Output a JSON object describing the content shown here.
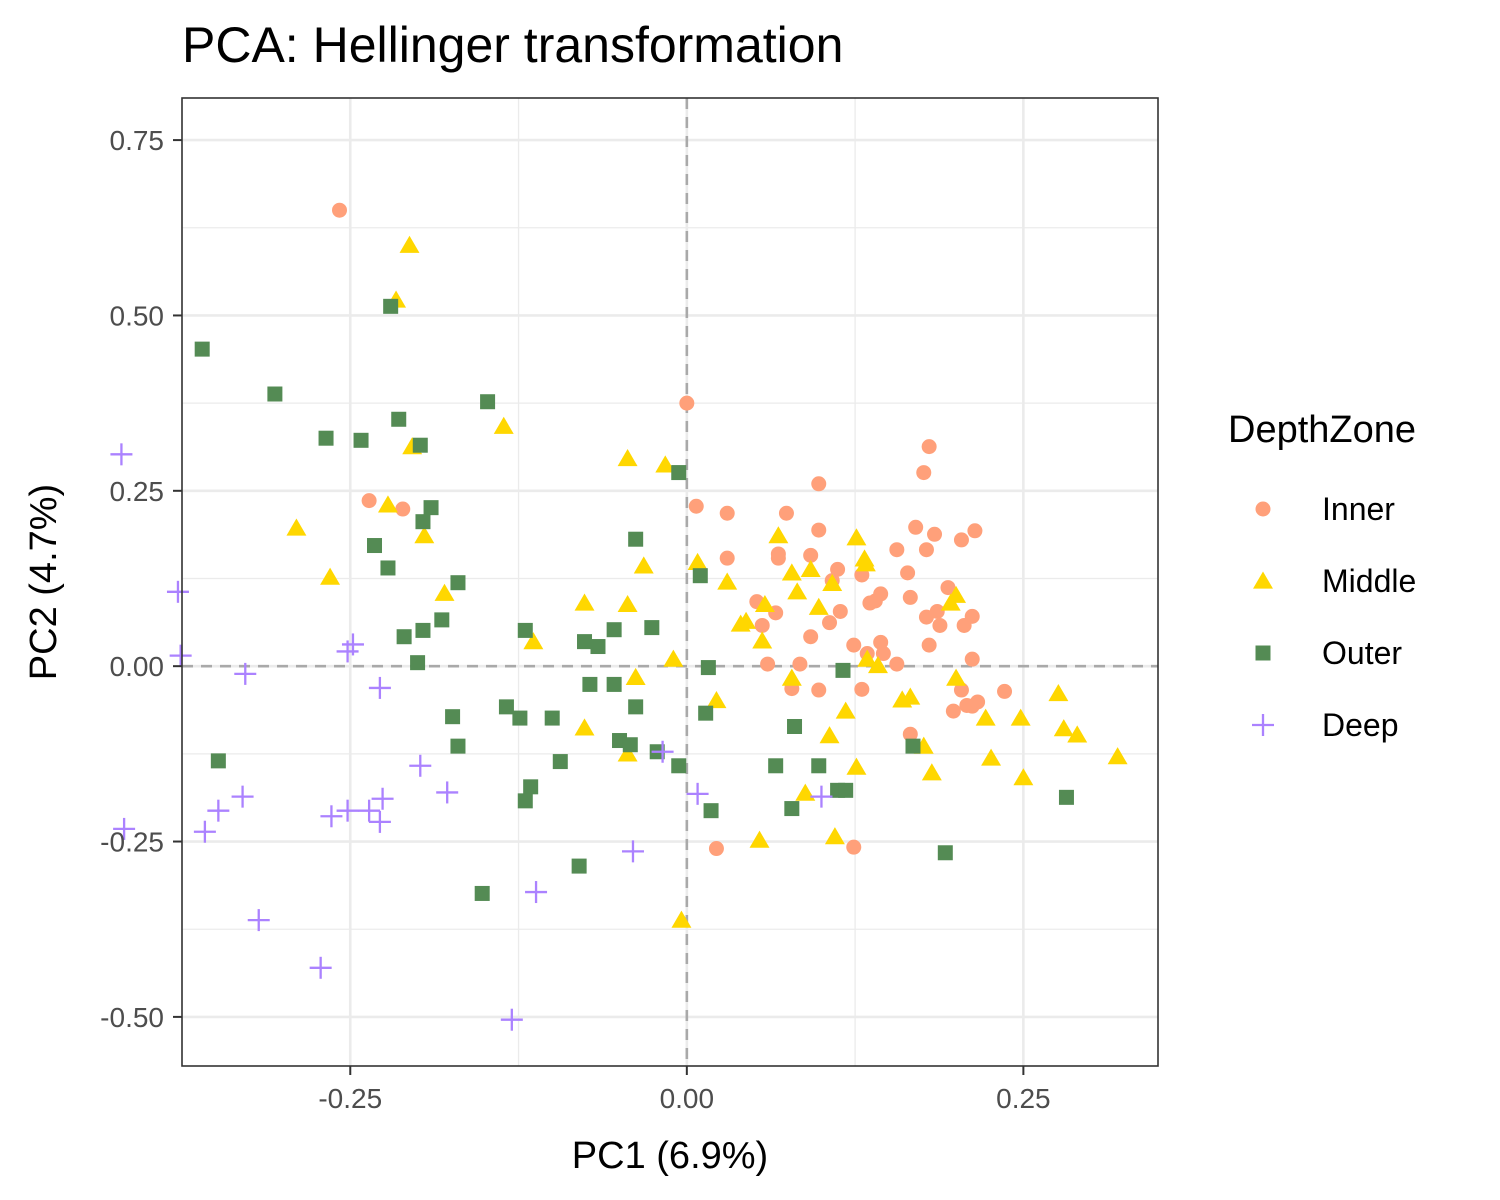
{
  "chart_data": {
    "type": "scatter",
    "title": "PCA: Hellinger transformation",
    "xlabel": "PC1 (6.9%)",
    "ylabel": "PC2 (4.7%)",
    "xlim": [
      -0.375,
      0.35
    ],
    "ylim": [
      -0.57,
      0.81
    ],
    "xticks": [
      -0.25,
      0.0,
      0.25
    ],
    "xtick_labels": [
      "-0.25",
      "0.00",
      "0.25"
    ],
    "yticks": [
      -0.5,
      -0.25,
      0.0,
      0.25,
      0.5,
      0.75
    ],
    "ytick_labels": [
      "-0.50",
      "-0.25",
      "0.00",
      "0.25",
      "0.50",
      "0.75"
    ],
    "grid": true,
    "reference_lines": {
      "x": 0,
      "y": 0,
      "style": "dashed"
    },
    "legend": {
      "title": "DepthZone",
      "position": "right"
    },
    "colors": {
      "Inner": "#FFA07A",
      "Middle": "#FFD700",
      "Outer": "#548B54",
      "Deep": "#AB82FF"
    },
    "series": [
      {
        "name": "Inner",
        "marker": "circle",
        "points": [
          [
            -0.258,
            0.65
          ],
          [
            -0.236,
            0.236
          ],
          [
            -0.211,
            0.224
          ],
          [
            0,
            0.375
          ],
          [
            0.007,
            0.228
          ],
          [
            0.03,
            0.218
          ],
          [
            0.03,
            0.154
          ],
          [
            0.052,
            0.092
          ],
          [
            0.056,
            0.058
          ],
          [
            0.06,
            0.003
          ],
          [
            0.066,
            0.076
          ],
          [
            0.074,
            0.218
          ],
          [
            0.068,
            0.16
          ],
          [
            0.068,
            0.154
          ],
          [
            0.078,
            -0.032
          ],
          [
            0.092,
            0.158
          ],
          [
            0.098,
            0.26
          ],
          [
            0.098,
            0.194
          ],
          [
            0.092,
            0.042
          ],
          [
            0.084,
            0.003
          ],
          [
            0.108,
            0.122
          ],
          [
            0.112,
            0.138
          ],
          [
            0.106,
            0.062
          ],
          [
            0.114,
            0.078
          ],
          [
            0.124,
            0.03
          ],
          [
            0.13,
            0.13
          ],
          [
            0.136,
            0.09
          ],
          [
            0.134,
            0.018
          ],
          [
            0.14,
            0.093
          ],
          [
            0.144,
            0.103
          ],
          [
            0.144,
            0.034
          ],
          [
            0.146,
            0.018
          ],
          [
            0.13,
            -0.033
          ],
          [
            0.098,
            -0.034
          ],
          [
            0.156,
            0.166
          ],
          [
            0.164,
            0.133
          ],
          [
            0.166,
            0.098
          ],
          [
            0.17,
            0.198
          ],
          [
            0.176,
            0.276
          ],
          [
            0.18,
            0.313
          ],
          [
            0.178,
            0.166
          ],
          [
            0.184,
            0.188
          ],
          [
            0.178,
            0.07
          ],
          [
            0.18,
            0.03
          ],
          [
            0.186,
            0.078
          ],
          [
            0.188,
            0.058
          ],
          [
            0.194,
            0.112
          ],
          [
            0.204,
            0.18
          ],
          [
            0.206,
            0.058
          ],
          [
            0.214,
            0.193
          ],
          [
            0.212,
            0.071
          ],
          [
            0.212,
            0.01
          ],
          [
            0.198,
            -0.064
          ],
          [
            0.204,
            -0.034
          ],
          [
            0.208,
            -0.056
          ],
          [
            0.212,
            -0.057
          ],
          [
            0.216,
            -0.051
          ],
          [
            0.236,
            -0.036
          ],
          [
            0.156,
            0.003
          ],
          [
            0.166,
            -0.097
          ],
          [
            0.022,
            -0.26
          ],
          [
            0.124,
            -0.258
          ]
        ]
      },
      {
        "name": "Middle",
        "marker": "triangle",
        "points": [
          [
            -0.206,
            0.6
          ],
          [
            -0.216,
            0.522
          ],
          [
            -0.136,
            0.342
          ],
          [
            -0.204,
            0.313
          ],
          [
            -0.222,
            0.23
          ],
          [
            -0.29,
            0.197
          ],
          [
            -0.265,
            0.127
          ],
          [
            -0.195,
            0.186
          ],
          [
            -0.18,
            0.104
          ],
          [
            -0.114,
            0.035
          ],
          [
            -0.044,
            0.296
          ],
          [
            -0.016,
            0.287
          ],
          [
            -0.032,
            0.143
          ],
          [
            -0.076,
            0.09
          ],
          [
            -0.044,
            0.088
          ],
          [
            -0.038,
            -0.016
          ],
          [
            -0.076,
            -0.088
          ],
          [
            -0.044,
            -0.125
          ],
          [
            -0.01,
            0.01
          ],
          [
            0.008,
            0.148
          ],
          [
            0.03,
            0.12
          ],
          [
            0.044,
            0.064
          ],
          [
            0.04,
            0.06
          ],
          [
            0.056,
            0.036
          ],
          [
            0.058,
            0.088
          ],
          [
            0.068,
            0.186
          ],
          [
            0.078,
            0.133
          ],
          [
            0.082,
            0.106
          ],
          [
            0.092,
            0.138
          ],
          [
            0.098,
            0.084
          ],
          [
            0.108,
            0.118
          ],
          [
            0.126,
            0.183
          ],
          [
            0.132,
            0.153
          ],
          [
            0.133,
            0.146
          ],
          [
            0.134,
            0.01
          ],
          [
            0.142,
            0.001
          ],
          [
            0.16,
            -0.048
          ],
          [
            0.166,
            -0.044
          ],
          [
            0.176,
            -0.114
          ],
          [
            0.182,
            -0.152
          ],
          [
            0.196,
            0.09
          ],
          [
            0.2,
            0.101
          ],
          [
            0.2,
            -0.017
          ],
          [
            0.222,
            -0.074
          ],
          [
            0.226,
            -0.131
          ],
          [
            0.248,
            -0.074
          ],
          [
            0.25,
            -0.159
          ],
          [
            0.276,
            -0.039
          ],
          [
            0.28,
            -0.089
          ],
          [
            0.29,
            -0.098
          ],
          [
            0.32,
            -0.129
          ],
          [
            0.022,
            -0.049
          ],
          [
            0.078,
            -0.017
          ],
          [
            0.088,
            -0.181
          ],
          [
            0.106,
            -0.099
          ],
          [
            0.118,
            -0.064
          ],
          [
            0.126,
            -0.144
          ],
          [
            0.11,
            -0.243
          ],
          [
            0.054,
            -0.248
          ],
          [
            -0.004,
            -0.362
          ]
        ]
      },
      {
        "name": "Outer",
        "marker": "square",
        "points": [
          [
            -0.22,
            0.513
          ],
          [
            -0.36,
            0.452
          ],
          [
            -0.306,
            0.388
          ],
          [
            -0.268,
            0.325
          ],
          [
            -0.242,
            0.322
          ],
          [
            -0.214,
            0.352
          ],
          [
            -0.198,
            0.315
          ],
          [
            -0.148,
            0.377
          ],
          [
            -0.232,
            0.172
          ],
          [
            -0.222,
            0.14
          ],
          [
            -0.196,
            0.206
          ],
          [
            -0.19,
            0.226
          ],
          [
            -0.17,
            0.119
          ],
          [
            -0.21,
            0.042
          ],
          [
            -0.196,
            0.051
          ],
          [
            -0.182,
            0.066
          ],
          [
            -0.2,
            0.005
          ],
          [
            -0.174,
            -0.072
          ],
          [
            -0.17,
            -0.114
          ],
          [
            -0.134,
            -0.058
          ],
          [
            -0.12,
            0.051
          ],
          [
            -0.124,
            -0.074
          ],
          [
            -0.1,
            -0.074
          ],
          [
            -0.094,
            -0.136
          ],
          [
            -0.116,
            -0.172
          ],
          [
            -0.12,
            -0.192
          ],
          [
            -0.076,
            0.035
          ],
          [
            -0.066,
            0.028
          ],
          [
            -0.054,
            0.052
          ],
          [
            -0.038,
            0.181
          ],
          [
            -0.026,
            0.055
          ],
          [
            -0.072,
            -0.026
          ],
          [
            -0.054,
            -0.026
          ],
          [
            -0.038,
            -0.058
          ],
          [
            -0.05,
            -0.106
          ],
          [
            -0.042,
            -0.112
          ],
          [
            -0.022,
            -0.122
          ],
          [
            -0.006,
            -0.142
          ],
          [
            -0.006,
            0.276
          ],
          [
            0.01,
            0.129
          ],
          [
            0.016,
            -0.002
          ],
          [
            0.014,
            -0.067
          ],
          [
            0.08,
            -0.086
          ],
          [
            0.066,
            -0.142
          ],
          [
            0.098,
            -0.142
          ],
          [
            0.112,
            -0.177
          ],
          [
            0.118,
            -0.177
          ],
          [
            0.116,
            -0.006
          ],
          [
            0.168,
            -0.114
          ],
          [
            0.282,
            -0.187
          ],
          [
            0.192,
            -0.266
          ],
          [
            -0.152,
            -0.324
          ],
          [
            -0.08,
            -0.285
          ],
          [
            0.018,
            -0.206
          ],
          [
            0.078,
            -0.203
          ],
          [
            -0.348,
            -0.135
          ]
        ]
      },
      {
        "name": "Deep",
        "marker": "plus",
        "points": [
          [
            -0.42,
            0.302
          ],
          [
            -0.378,
            0.106
          ],
          [
            -0.376,
            0.015
          ],
          [
            -0.328,
            -0.011
          ],
          [
            -0.252,
            0.021
          ],
          [
            -0.248,
            0.031
          ],
          [
            -0.228,
            -0.031
          ],
          [
            -0.198,
            -0.142
          ],
          [
            -0.178,
            -0.18
          ],
          [
            -0.418,
            -0.232
          ],
          [
            -0.358,
            -0.236
          ],
          [
            -0.348,
            -0.206
          ],
          [
            -0.33,
            -0.186
          ],
          [
            -0.264,
            -0.214
          ],
          [
            -0.252,
            -0.206
          ],
          [
            -0.236,
            -0.206
          ],
          [
            -0.228,
            -0.222
          ],
          [
            -0.226,
            -0.189
          ],
          [
            -0.112,
            -0.322
          ],
          [
            -0.04,
            -0.264
          ],
          [
            0.008,
            -0.182
          ],
          [
            -0.018,
            -0.122
          ],
          [
            -0.318,
            -0.362
          ],
          [
            -0.272,
            -0.43
          ],
          [
            -0.13,
            -0.504
          ],
          [
            0.1,
            -0.186
          ]
        ]
      }
    ]
  }
}
